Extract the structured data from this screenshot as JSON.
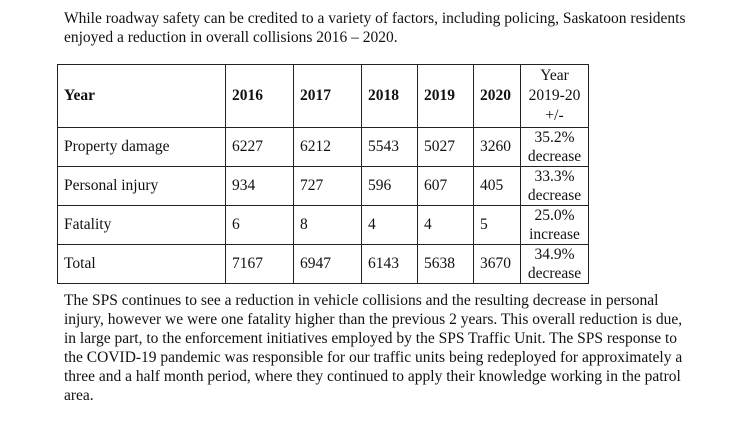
{
  "intro": "While roadway safety can be credited to a variety of factors, including policing, Saskatoon residents enjoyed a reduction in overall collisions 2016 – 2020.",
  "table": {
    "headers": [
      "Year",
      "2016",
      "2017",
      "2018",
      "2019",
      "2020"
    ],
    "change_header": {
      "line1": "Year",
      "line2": "2019-20",
      "line3": "+/-"
    },
    "rows": [
      {
        "label": "Property damage",
        "values": [
          "6227",
          "6212",
          "5543",
          "5027",
          "3260"
        ],
        "change_pct": "35.2%",
        "change_dir": "decrease"
      },
      {
        "label": "Personal injury",
        "values": [
          "934",
          "727",
          "596",
          "607",
          "405"
        ],
        "change_pct": "33.3%",
        "change_dir": "decrease"
      },
      {
        "label": "Fatality",
        "values": [
          "6",
          "8",
          "4",
          "4",
          "5"
        ],
        "change_pct": "25.0%",
        "change_dir": "increase"
      },
      {
        "label": "Total",
        "values": [
          "7167",
          "6947",
          "6143",
          "5638",
          "3670"
        ],
        "change_pct": "34.9%",
        "change_dir": "decrease"
      }
    ]
  },
  "closing": "The SPS continues to see a reduction in vehicle collisions and the resulting decrease in personal injury, however we were one fatality higher than the previous 2 years. This overall reduction is due, in large part, to the enforcement initiatives employed by the SPS Traffic Unit. The SPS response to the COVID-19 pandemic was responsible for our traffic units being redeployed for approximately a three and a half month period, where they continued to apply their knowledge working in the patrol area."
}
